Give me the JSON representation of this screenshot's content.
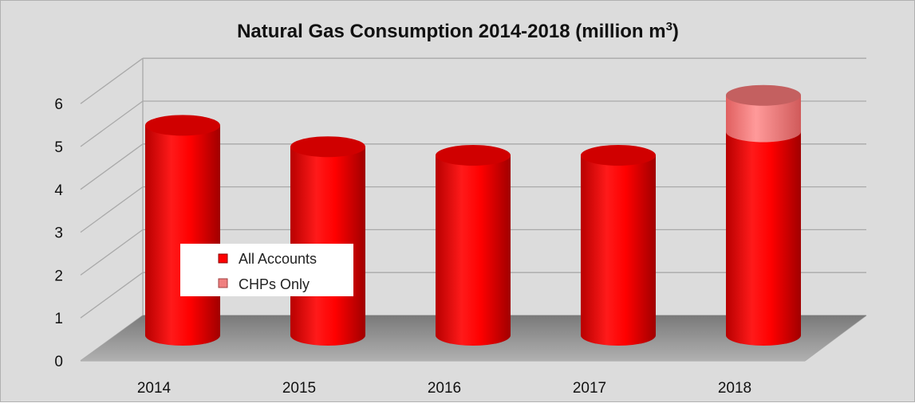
{
  "chart_data": {
    "type": "bar",
    "title": "Natural Gas Consumption 2014-2018 (million m",
    "title_superscript": "3",
    "title_suffix": ")",
    "categories": [
      "2014",
      "2015",
      "2016",
      "2017",
      "2018"
    ],
    "series": [
      {
        "name": "All Accounts",
        "values": [
          4.9,
          4.4,
          4.2,
          4.2,
          4.75
        ],
        "color": "#ff0000"
      },
      {
        "name": "CHPs Only",
        "values": [
          0,
          0,
          0,
          0,
          0.85
        ],
        "color": "#f08080"
      }
    ],
    "ylim": [
      0,
      6
    ],
    "yticks": [
      "0",
      "1",
      "2",
      "3",
      "4",
      "5",
      "6"
    ],
    "grid": true,
    "legend_position": "left-center",
    "style": "3d-cylinder"
  }
}
